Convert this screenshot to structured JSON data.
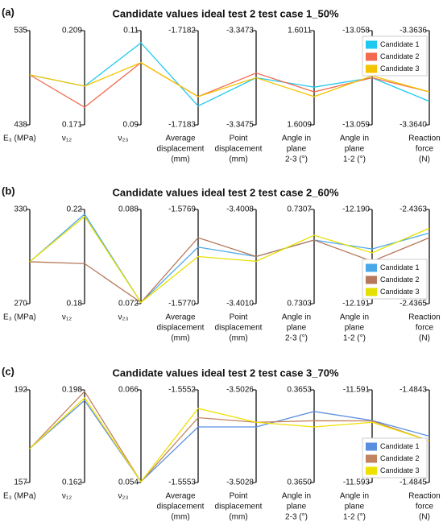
{
  "chart_data": [
    {
      "type": "parallel",
      "panel_label": "(a)",
      "title": "Candidate values ideal test 2 test case 1_50%",
      "legend": "upper right",
      "axes": [
        {
          "label": [
            "E₃ (MPa)"
          ],
          "ylim": [
            438,
            535
          ],
          "yticks": [
            438,
            535
          ]
        },
        {
          "label": [
            "ν₁₂"
          ],
          "ylim": [
            0.171,
            0.209
          ],
          "yticks": [
            0.171,
            0.209
          ]
        },
        {
          "label": [
            "ν₂₃"
          ],
          "ylim": [
            0.09,
            0.11
          ],
          "yticks": [
            0.09,
            0.11
          ]
        },
        {
          "label": [
            "Average",
            "displacement",
            "(mm)"
          ],
          "ylim": [
            -1.7183,
            -1.7182
          ],
          "yticks": [
            -1.7183,
            -1.7182
          ]
        },
        {
          "label": [
            "Point",
            "displacement",
            "(mm)"
          ],
          "ylim": [
            -3.3475,
            -3.3473
          ],
          "yticks": [
            -3.3475,
            -3.3473
          ]
        },
        {
          "label": [
            "Angle in",
            "plane",
            "2-3 (°)"
          ],
          "ylim": [
            1.6009,
            1.6011
          ],
          "yticks": [
            1.6009,
            1.6011
          ]
        },
        {
          "label": [
            "Angle in",
            "plane",
            "1-2 (°)"
          ],
          "ylim": [
            -13.059,
            -13.058
          ],
          "yticks": [
            -13.059,
            -13.058
          ]
        },
        {
          "label": [
            "Reaction",
            "force",
            "(N)"
          ],
          "ylim": [
            -3.364,
            -3.3636
          ],
          "yticks": [
            {
              "value": -3.364,
              "label": "-3.3640"
            },
            -3.3636
          ]
        }
      ],
      "series": [
        {
          "name": "Candidate 1",
          "color": "#1ec8f0",
          "values": [
            489.4,
            0.1866,
            0.1074,
            -1.71828,
            -3.3474,
            1.60098,
            -13.0585,
            -3.3639
          ]
        },
        {
          "name": "Candidate 2",
          "color": "#f26b50",
          "values": [
            489.4,
            0.1781,
            0.1032,
            -1.71827,
            -3.34739,
            1.60097,
            -13.0585,
            -3.36386
          ]
        },
        {
          "name": "Candidate 3",
          "color": "#f5c400",
          "values": [
            489.4,
            0.1866,
            0.1032,
            -1.71827,
            -3.3474,
            1.60096,
            -13.05848,
            -3.36386
          ]
        }
      ]
    },
    {
      "type": "parallel",
      "panel_label": "(b)",
      "title": "Candidate values ideal test 2 test case 2_60%",
      "legend": "lower right",
      "axes": [
        {
          "label": [
            "E₃ (MPa)"
          ],
          "ylim": [
            270,
            330
          ],
          "yticks": [
            270,
            330
          ]
        },
        {
          "label": [
            "ν₁₂"
          ],
          "ylim": [
            0.18,
            0.22
          ],
          "yticks": [
            0.18,
            0.22
          ]
        },
        {
          "label": [
            "ν₂₃"
          ],
          "ylim": [
            0.072,
            0.088
          ],
          "yticks": [
            0.072,
            0.088
          ]
        },
        {
          "label": [
            "Average",
            "displacement",
            "(mm)"
          ],
          "ylim": [
            -1.577,
            -1.5769
          ],
          "yticks": [
            {
              "value": -1.577,
              "label": "-1.5770"
            },
            -1.5769
          ]
        },
        {
          "label": [
            "Point",
            "displacement",
            "(mm)"
          ],
          "ylim": [
            -3.401,
            -3.4008
          ],
          "yticks": [
            {
              "value": -3.401,
              "label": "-3.4010"
            },
            -3.4008
          ]
        },
        {
          "label": [
            "Angle in",
            "plane",
            "2-3 (°)"
          ],
          "ylim": [
            0.7303,
            0.7307
          ],
          "yticks": [
            0.7303,
            0.7307
          ]
        },
        {
          "label": [
            "Angle in",
            "plane",
            "1-2 (°)"
          ],
          "ylim": [
            -12.191,
            -12.19
          ],
          "yticks": [
            -12.191,
            {
              "value": -12.19,
              "label": "-12.190"
            }
          ]
        },
        {
          "label": [
            "Reaction",
            "force",
            "(N)"
          ],
          "ylim": [
            -2.4365,
            -2.4363
          ],
          "yticks": [
            -2.4365,
            -2.4363
          ]
        }
      ],
      "series": [
        {
          "name": "Candidate 1",
          "color": "#4aa8e8",
          "values": [
            296.7,
            0.218,
            0.0722,
            -1.57694,
            -3.4009,
            0.73057,
            -12.19042,
            -2.43635
          ]
        },
        {
          "name": "Candidate 2",
          "color": "#b5785a",
          "values": [
            296.7,
            0.197,
            0.0722,
            -1.57693,
            -3.4009,
            0.73057,
            -12.19055,
            -2.43636
          ]
        },
        {
          "name": "Candidate 3",
          "color": "#e6e000",
          "values": [
            296.7,
            0.217,
            0.0722,
            -1.57695,
            -3.40091,
            0.73059,
            -12.19046,
            -2.43634
          ]
        }
      ]
    },
    {
      "type": "parallel",
      "panel_label": "(c)",
      "title": "Candidate values ideal test 2 test case 3_70%",
      "legend": "lower right",
      "axes": [
        {
          "label": [
            "E₃ (MPa)"
          ],
          "ylim": [
            157,
            192
          ],
          "yticks": [
            157,
            192
          ]
        },
        {
          "label": [
            "ν₁₂"
          ],
          "ylim": [
            0.162,
            0.198
          ],
          "yticks": [
            0.162,
            0.198
          ]
        },
        {
          "label": [
            "ν₂₃"
          ],
          "ylim": [
            0.054,
            0.066
          ],
          "yticks": [
            0.054,
            0.066
          ]
        },
        {
          "label": [
            "Average",
            "displacement",
            "(mm)"
          ],
          "ylim": [
            -1.5553,
            -1.5552
          ],
          "yticks": [
            -1.5553,
            -1.5552
          ]
        },
        {
          "label": [
            "Point",
            "displacement",
            "(mm)"
          ],
          "ylim": [
            -3.5028,
            -3.5026
          ],
          "yticks": [
            -3.5028,
            -3.5026
          ]
        },
        {
          "label": [
            "Angle in",
            "plane",
            "2-3 (°)"
          ],
          "ylim": [
            0.365,
            0.3653
          ],
          "yticks": [
            {
              "value": 0.365,
              "label": "0.3650"
            },
            0.3653
          ]
        },
        {
          "label": [
            "Angle in",
            "plane",
            "1-2 (°)"
          ],
          "ylim": [
            -11.593,
            -11.591
          ],
          "yticks": [
            -11.593,
            -11.591
          ]
        },
        {
          "label": [
            "Reaction",
            "force",
            "(N)"
          ],
          "ylim": [
            -1.4845,
            -1.4843
          ],
          "yticks": [
            -1.4845,
            -1.4843
          ]
        }
      ],
      "series": [
        {
          "name": "Candidate 1",
          "color": "#5a8fe0",
          "values": [
            169.8,
            0.1939,
            0.0541,
            -1.55524,
            -3.50268,
            0.36523,
            -11.59166,
            -1.4844
          ]
        },
        {
          "name": "Candidate 2",
          "color": "#c0845e",
          "values": [
            169.8,
            0.1974,
            0.0541,
            -1.55523,
            -3.50267,
            0.3652,
            -11.59167,
            -1.48441
          ]
        },
        {
          "name": "Candidate 3",
          "color": "#f0e000",
          "values": [
            169.8,
            0.1949,
            0.0541,
            -1.55522,
            -3.50267,
            0.36518,
            -11.5917,
            -1.48441
          ]
        }
      ]
    }
  ]
}
